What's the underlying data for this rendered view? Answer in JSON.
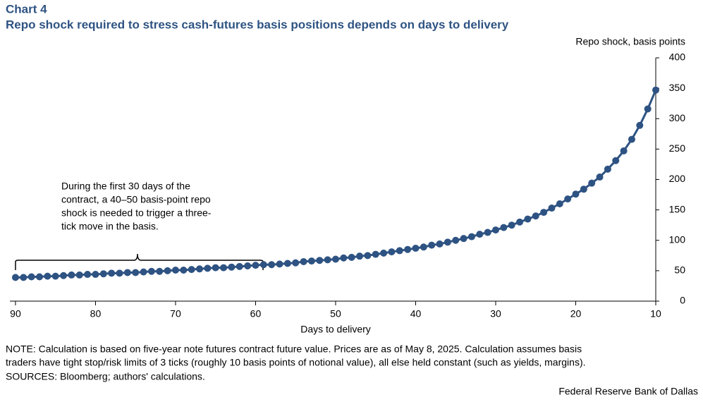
{
  "chart_data": {
    "type": "line",
    "title": "Chart 4",
    "subtitle": "Repo shock required to stress cash-futures basis positions depends on days to delivery",
    "y_label": "Repo shock, basis points",
    "x_label": "Days to delivery",
    "annotation": [
      "During the first 30 days of the",
      "contract, a 40–50 basis-point repo",
      "shock is needed to trigger a three-",
      "tick move in the basis."
    ],
    "notes": [
      "NOTE: Calculation is based on five-year note futures contract future value. Prices are as of May 8, 2025. Calculation assumes basis",
      "traders have tight stop/risk limits of 3 ticks (roughly  10 basis points of notional value), all else held constant (such as yields, margins).",
      "SOURCES: Bloomberg; authors' calculations."
    ],
    "source": "Federal Reserve Bank of Dallas",
    "color": "#2e5383",
    "x": [
      90,
      89,
      88,
      87,
      86,
      85,
      84,
      83,
      82,
      81,
      80,
      79,
      78,
      77,
      76,
      75,
      74,
      73,
      72,
      71,
      70,
      69,
      68,
      67,
      66,
      65,
      64,
      63,
      62,
      61,
      60,
      59,
      58,
      57,
      56,
      55,
      54,
      53,
      52,
      51,
      50,
      49,
      48,
      47,
      46,
      45,
      44,
      43,
      42,
      41,
      40,
      39,
      38,
      37,
      36,
      35,
      34,
      33,
      32,
      31,
      30,
      29,
      28,
      27,
      26,
      25,
      24,
      23,
      22,
      21,
      20,
      19,
      18,
      17,
      16,
      15,
      14,
      13,
      12,
      11,
      10
    ],
    "values": [
      39,
      39,
      40,
      40,
      41,
      41,
      42,
      43,
      43,
      44,
      44,
      45,
      46,
      46,
      47,
      47,
      48,
      49,
      49,
      50,
      51,
      51,
      52,
      53,
      54,
      55,
      55,
      56,
      57,
      58,
      59,
      60,
      60,
      61,
      62,
      63,
      65,
      66,
      67,
      68,
      69,
      71,
      72,
      74,
      75,
      77,
      79,
      81,
      83,
      85,
      87,
      89,
      92,
      94,
      97,
      100,
      103,
      106,
      110,
      113,
      117,
      121,
      125,
      130,
      135,
      140,
      146,
      153,
      160,
      168,
      176,
      184,
      194,
      204,
      217,
      231,
      247,
      266,
      289,
      316,
      347
    ],
    "xlim": [
      90.7,
      10
    ],
    "xticks": [
      90,
      80,
      70,
      60,
      50,
      40,
      30,
      20,
      10
    ],
    "ylim": [
      0,
      400
    ],
    "yticks": [
      0,
      50,
      100,
      150,
      200,
      250,
      300,
      350,
      400
    ],
    "y_axis_side": "right"
  }
}
